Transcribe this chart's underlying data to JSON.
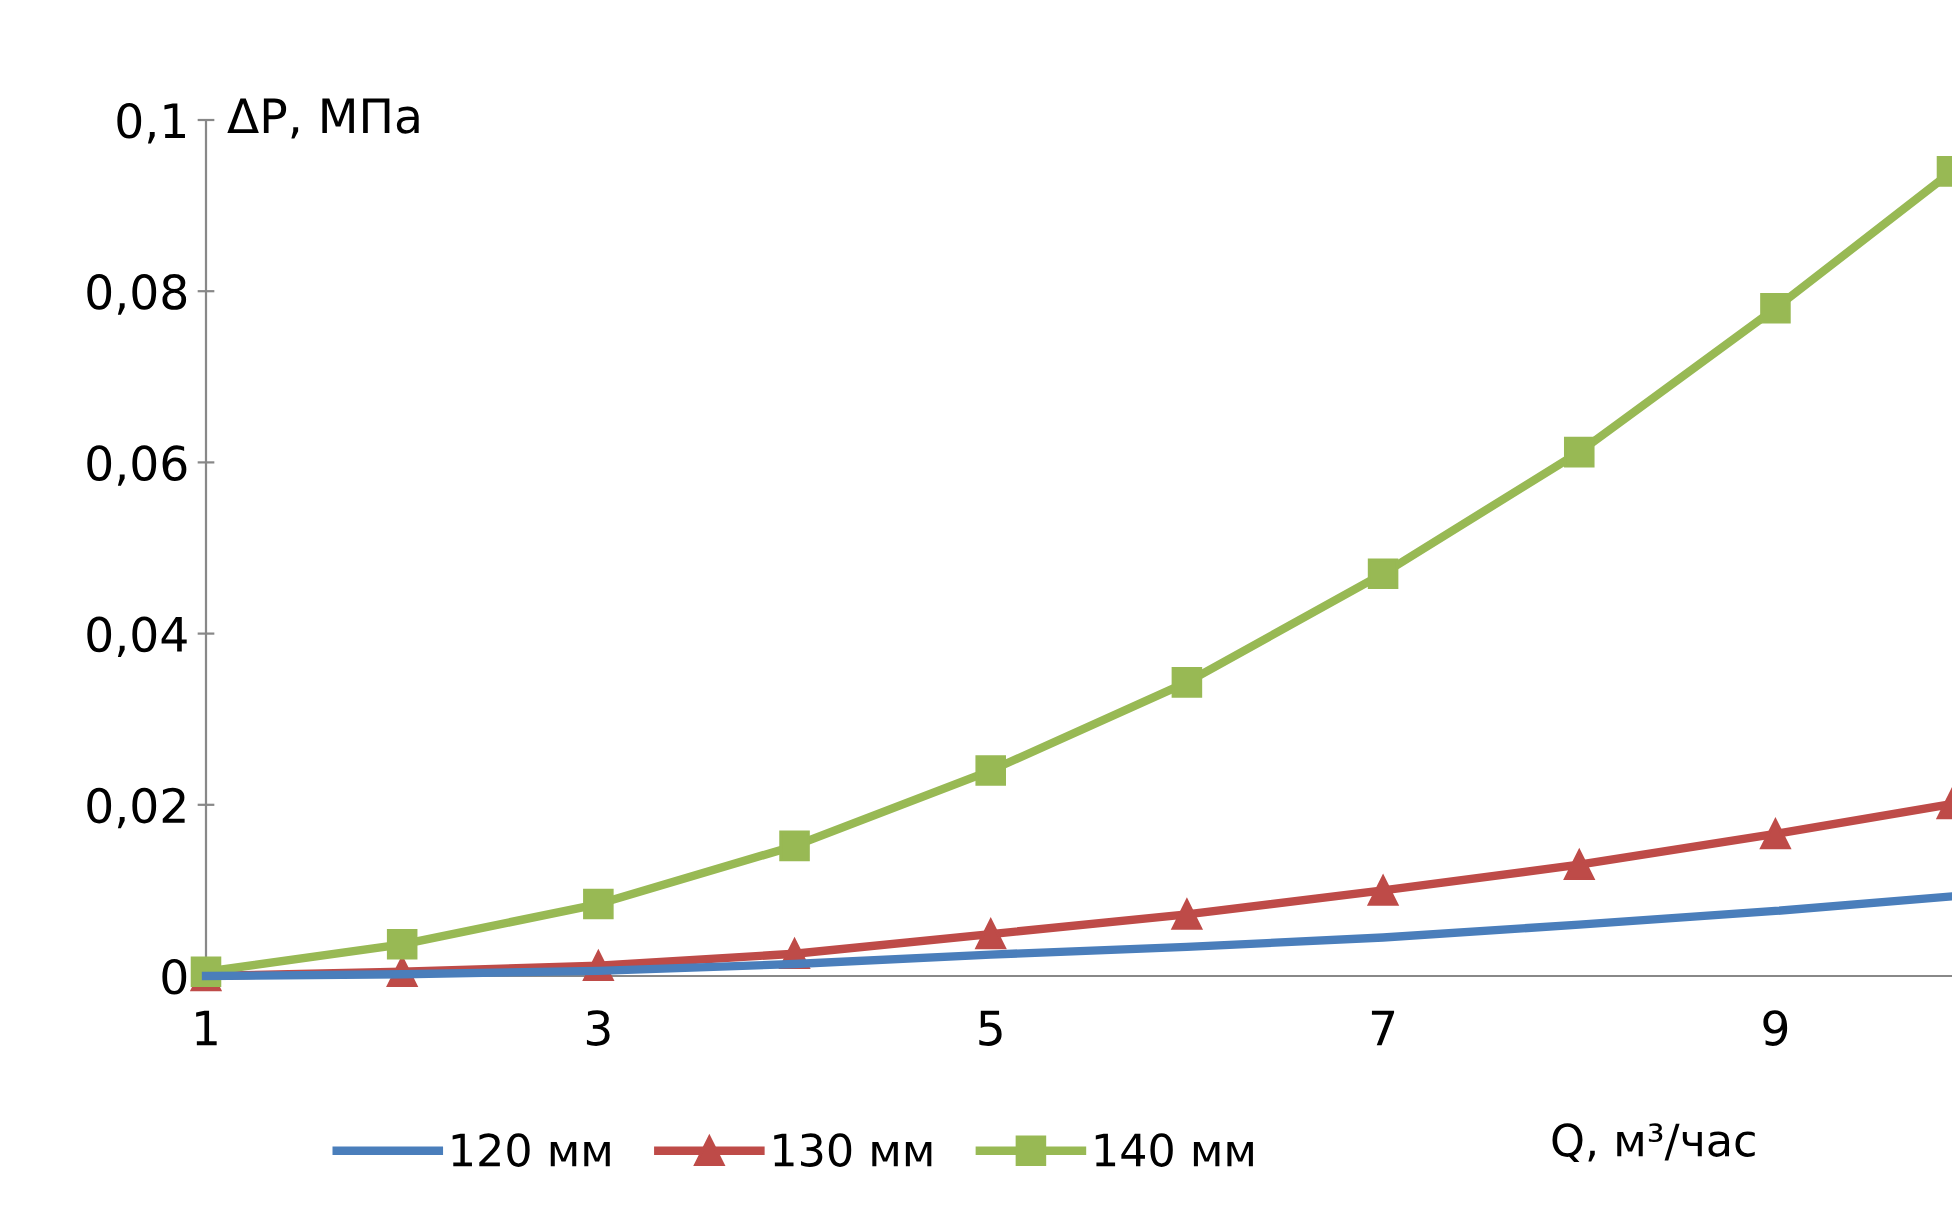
{
  "chart_data": {
    "type": "line",
    "xlabel": "Q, м³/час",
    "ylabel": "ΔP, МПа",
    "x": [
      1,
      2,
      3,
      4,
      5,
      6,
      7,
      8,
      9,
      9.9
    ],
    "series": [
      {
        "name": "120 мм",
        "color": "#4a7ebb",
        "marker": "none",
        "values": [
          0,
          0.0002,
          0.0006,
          0.0014,
          0.0025,
          0.0034,
          0.0045,
          0.006,
          0.0076,
          0.0093
        ]
      },
      {
        "name": "130 мм",
        "color": "#be4b48",
        "marker": "triangle",
        "values": [
          0,
          0.0005,
          0.0012,
          0.0026,
          0.0049,
          0.0072,
          0.01,
          0.013,
          0.0166,
          0.0201
        ]
      },
      {
        "name": "140 мм",
        "color": "#98b954",
        "marker": "square",
        "values": [
          0.0005,
          0.0037,
          0.0084,
          0.0152,
          0.024,
          0.0343,
          0.047,
          0.0612,
          0.078,
          0.094
        ]
      }
    ],
    "xlim": [
      1,
      9.9
    ],
    "xticks": [
      1,
      3,
      5,
      7,
      9
    ],
    "ylim": [
      0,
      0.1
    ],
    "yticks": [
      {
        "value": 0,
        "label": "0"
      },
      {
        "value": 0.02,
        "label": "0,02"
      },
      {
        "value": 0.04,
        "label": "0,04"
      },
      {
        "value": 0.06,
        "label": "0,06"
      },
      {
        "value": 0.08,
        "label": "0,08"
      },
      {
        "value": 0.1,
        "label": "0,1"
      }
    ],
    "grid": false,
    "legend": "bottom",
    "line_style": "solid"
  }
}
